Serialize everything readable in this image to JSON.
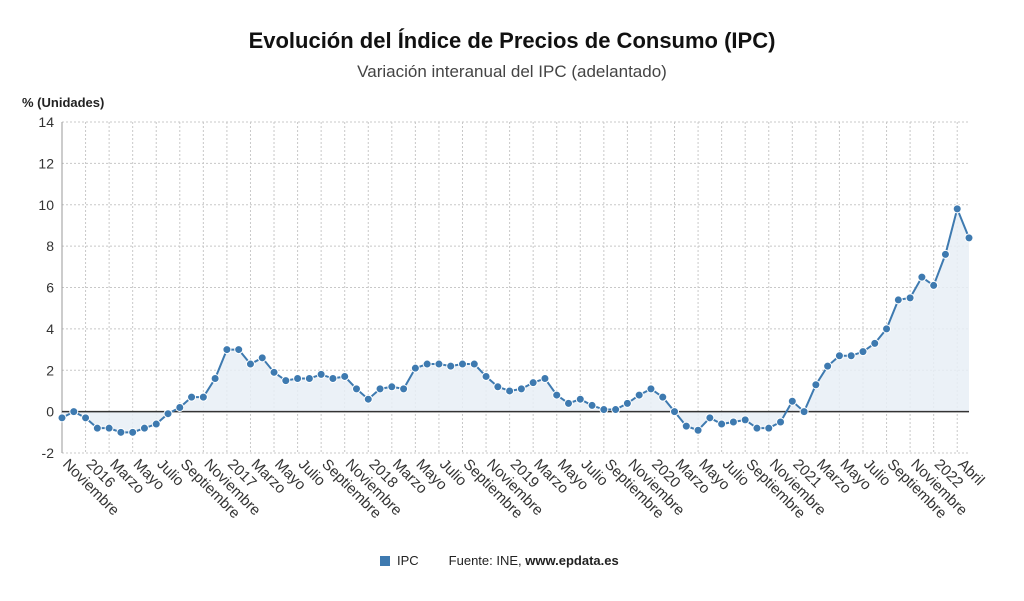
{
  "header": {
    "title": "Evolución del Índice de Precios de Consumo (IPC)",
    "subtitle": "Variación interanual del IPC (adelantado)",
    "unit_label": "% (Unidades)"
  },
  "legend": {
    "series_name": "IPC",
    "source_prefix": "Fuente: INE, ",
    "source_site": "www.epdata.es"
  },
  "colors": {
    "line": "#3e7ab0",
    "area": "#e8eef6",
    "grid": "#c8c8c8",
    "zero_line": "#333333"
  },
  "chart_data": {
    "type": "line",
    "title": "Evolución del Índice de Precios de Consumo (IPC)",
    "subtitle": "Variación interanual del IPC (adelantado)",
    "ylabel": "% (Unidades)",
    "ylim": [
      -2,
      14
    ],
    "yticks": [
      -2,
      0,
      2,
      4,
      6,
      8,
      10,
      12,
      14
    ],
    "grid": true,
    "area_fill": true,
    "legend_position": "bottom-center",
    "x_tick_labels": [
      "Noviembre",
      "2016",
      "Marzo",
      "Mayo",
      "Julio",
      "Septiembre",
      "Noviembre",
      "2017",
      "Marzo",
      "Mayo",
      "Julio",
      "Septiembre",
      "Noviembre",
      "2018",
      "Marzo",
      "Mayo",
      "Julio",
      "Septiembre",
      "Noviembre",
      "2019",
      "Marzo",
      "Mayo",
      "Julio",
      "Septiembre",
      "Noviembre",
      "2020",
      "Marzo",
      "Mayo",
      "Julio",
      "Septiembre",
      "Noviembre",
      "2021",
      "Marzo",
      "Mayo",
      "Julio",
      "Septiembre",
      "Noviembre",
      "2022",
      "Abril"
    ],
    "series": [
      {
        "name": "IPC",
        "values": [
          -0.3,
          0.0,
          -0.3,
          -0.8,
          -0.8,
          -1.0,
          -1.0,
          -0.8,
          -0.6,
          -0.1,
          0.2,
          0.7,
          0.7,
          1.6,
          3.0,
          3.0,
          2.3,
          2.6,
          1.9,
          1.5,
          1.6,
          1.6,
          1.8,
          1.6,
          1.7,
          1.1,
          0.6,
          1.1,
          1.2,
          1.1,
          2.1,
          2.3,
          2.3,
          2.2,
          2.3,
          2.3,
          1.7,
          1.2,
          1.0,
          1.1,
          1.4,
          1.6,
          0.8,
          0.4,
          0.6,
          0.3,
          0.1,
          0.1,
          0.4,
          0.8,
          1.1,
          0.7,
          0.0,
          -0.7,
          -0.9,
          -0.3,
          -0.6,
          -0.5,
          -0.4,
          -0.8,
          -0.8,
          -0.5,
          0.5,
          0.0,
          1.3,
          2.2,
          2.7,
          2.7,
          2.9,
          3.3,
          4.0,
          5.4,
          5.5,
          6.5,
          6.1,
          7.6,
          9.8,
          8.4
        ]
      }
    ]
  }
}
